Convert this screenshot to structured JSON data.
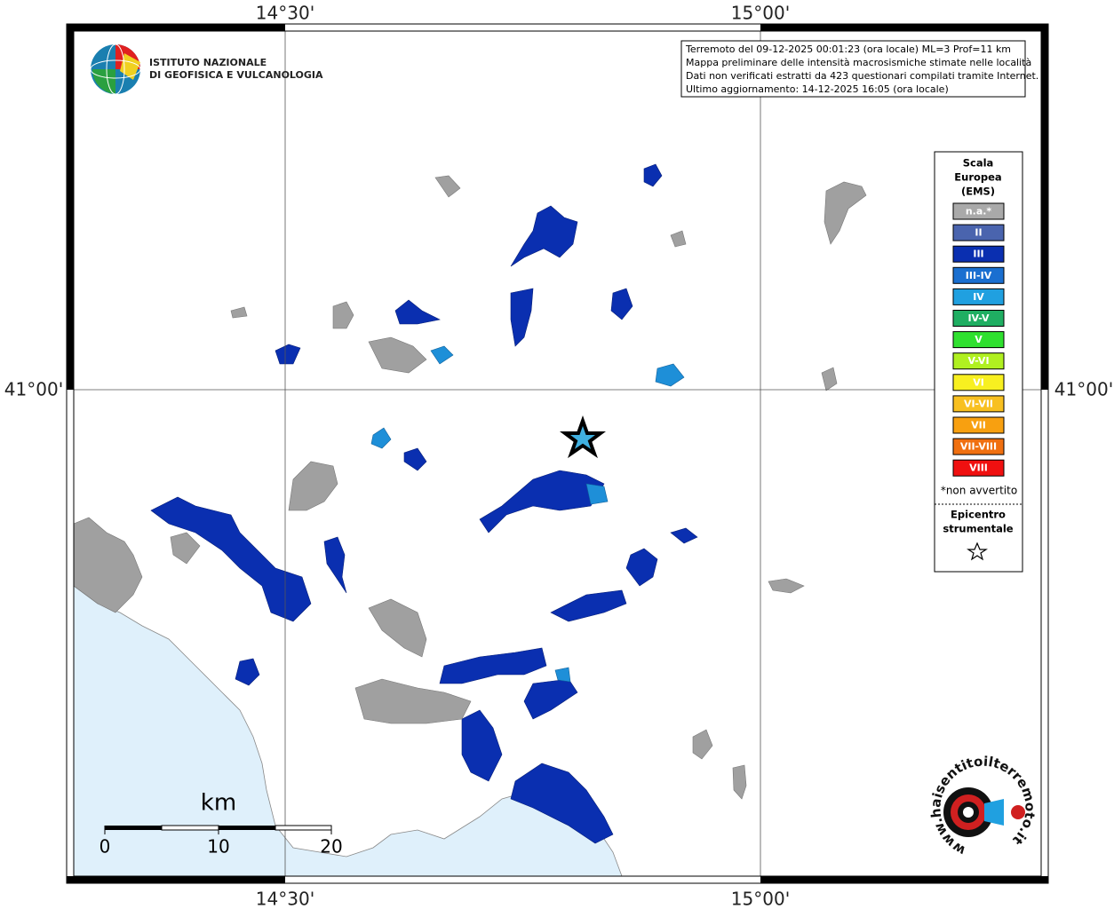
{
  "map": {
    "axis_labels": {
      "lon_left": "14°30'",
      "lon_right": "15°00'",
      "lat": "41°00'"
    },
    "info": [
      "Terremoto del 09-12-2025 00:01:23 (ora locale) ML=3 Prof=11 km",
      "Mappa preliminare delle intensità macrosismiche stimate nelle località",
      "Dati non verificati estratti da 423 questionari compilati tramite Internet.",
      "Ultimo aggiornamento: 14-12-2025 16:05 (ora locale)"
    ],
    "logo": [
      "ISTITUTO NAZIONALE",
      "DI GEOFISICA E VULCANOLOGIA"
    ],
    "legend": {
      "title": [
        "Scala",
        "Europea",
        "(EMS)"
      ],
      "items": [
        {
          "label": "n.a.*",
          "color": "#a9a9a9"
        },
        {
          "label": "II",
          "color": "#4a64ae"
        },
        {
          "label": "III",
          "color": "#0a2fb0"
        },
        {
          "label": "III-IV",
          "color": "#1a6fd0"
        },
        {
          "label": "IV",
          "color": "#20a0e0"
        },
        {
          "label": "IV-V",
          "color": "#1fae62"
        },
        {
          "label": "V",
          "color": "#2fe02f"
        },
        {
          "label": "V-VI",
          "color": "#b0f020"
        },
        {
          "label": "VI",
          "color": "#f8f020"
        },
        {
          "label": "VI-VII",
          "color": "#f8c020"
        },
        {
          "label": "VII",
          "color": "#f8a010"
        },
        {
          "label": "VII-VIII",
          "color": "#f07010"
        },
        {
          "label": "VIII",
          "color": "#f01010"
        }
      ],
      "note": "*non avvertito",
      "epicenter": [
        "Epicentro",
        "strumentale"
      ]
    },
    "scale_bar": {
      "unit": "km",
      "labels": [
        "0",
        "10",
        "20"
      ]
    },
    "site_logo": "www.haisentitoilterremoto.it"
  }
}
